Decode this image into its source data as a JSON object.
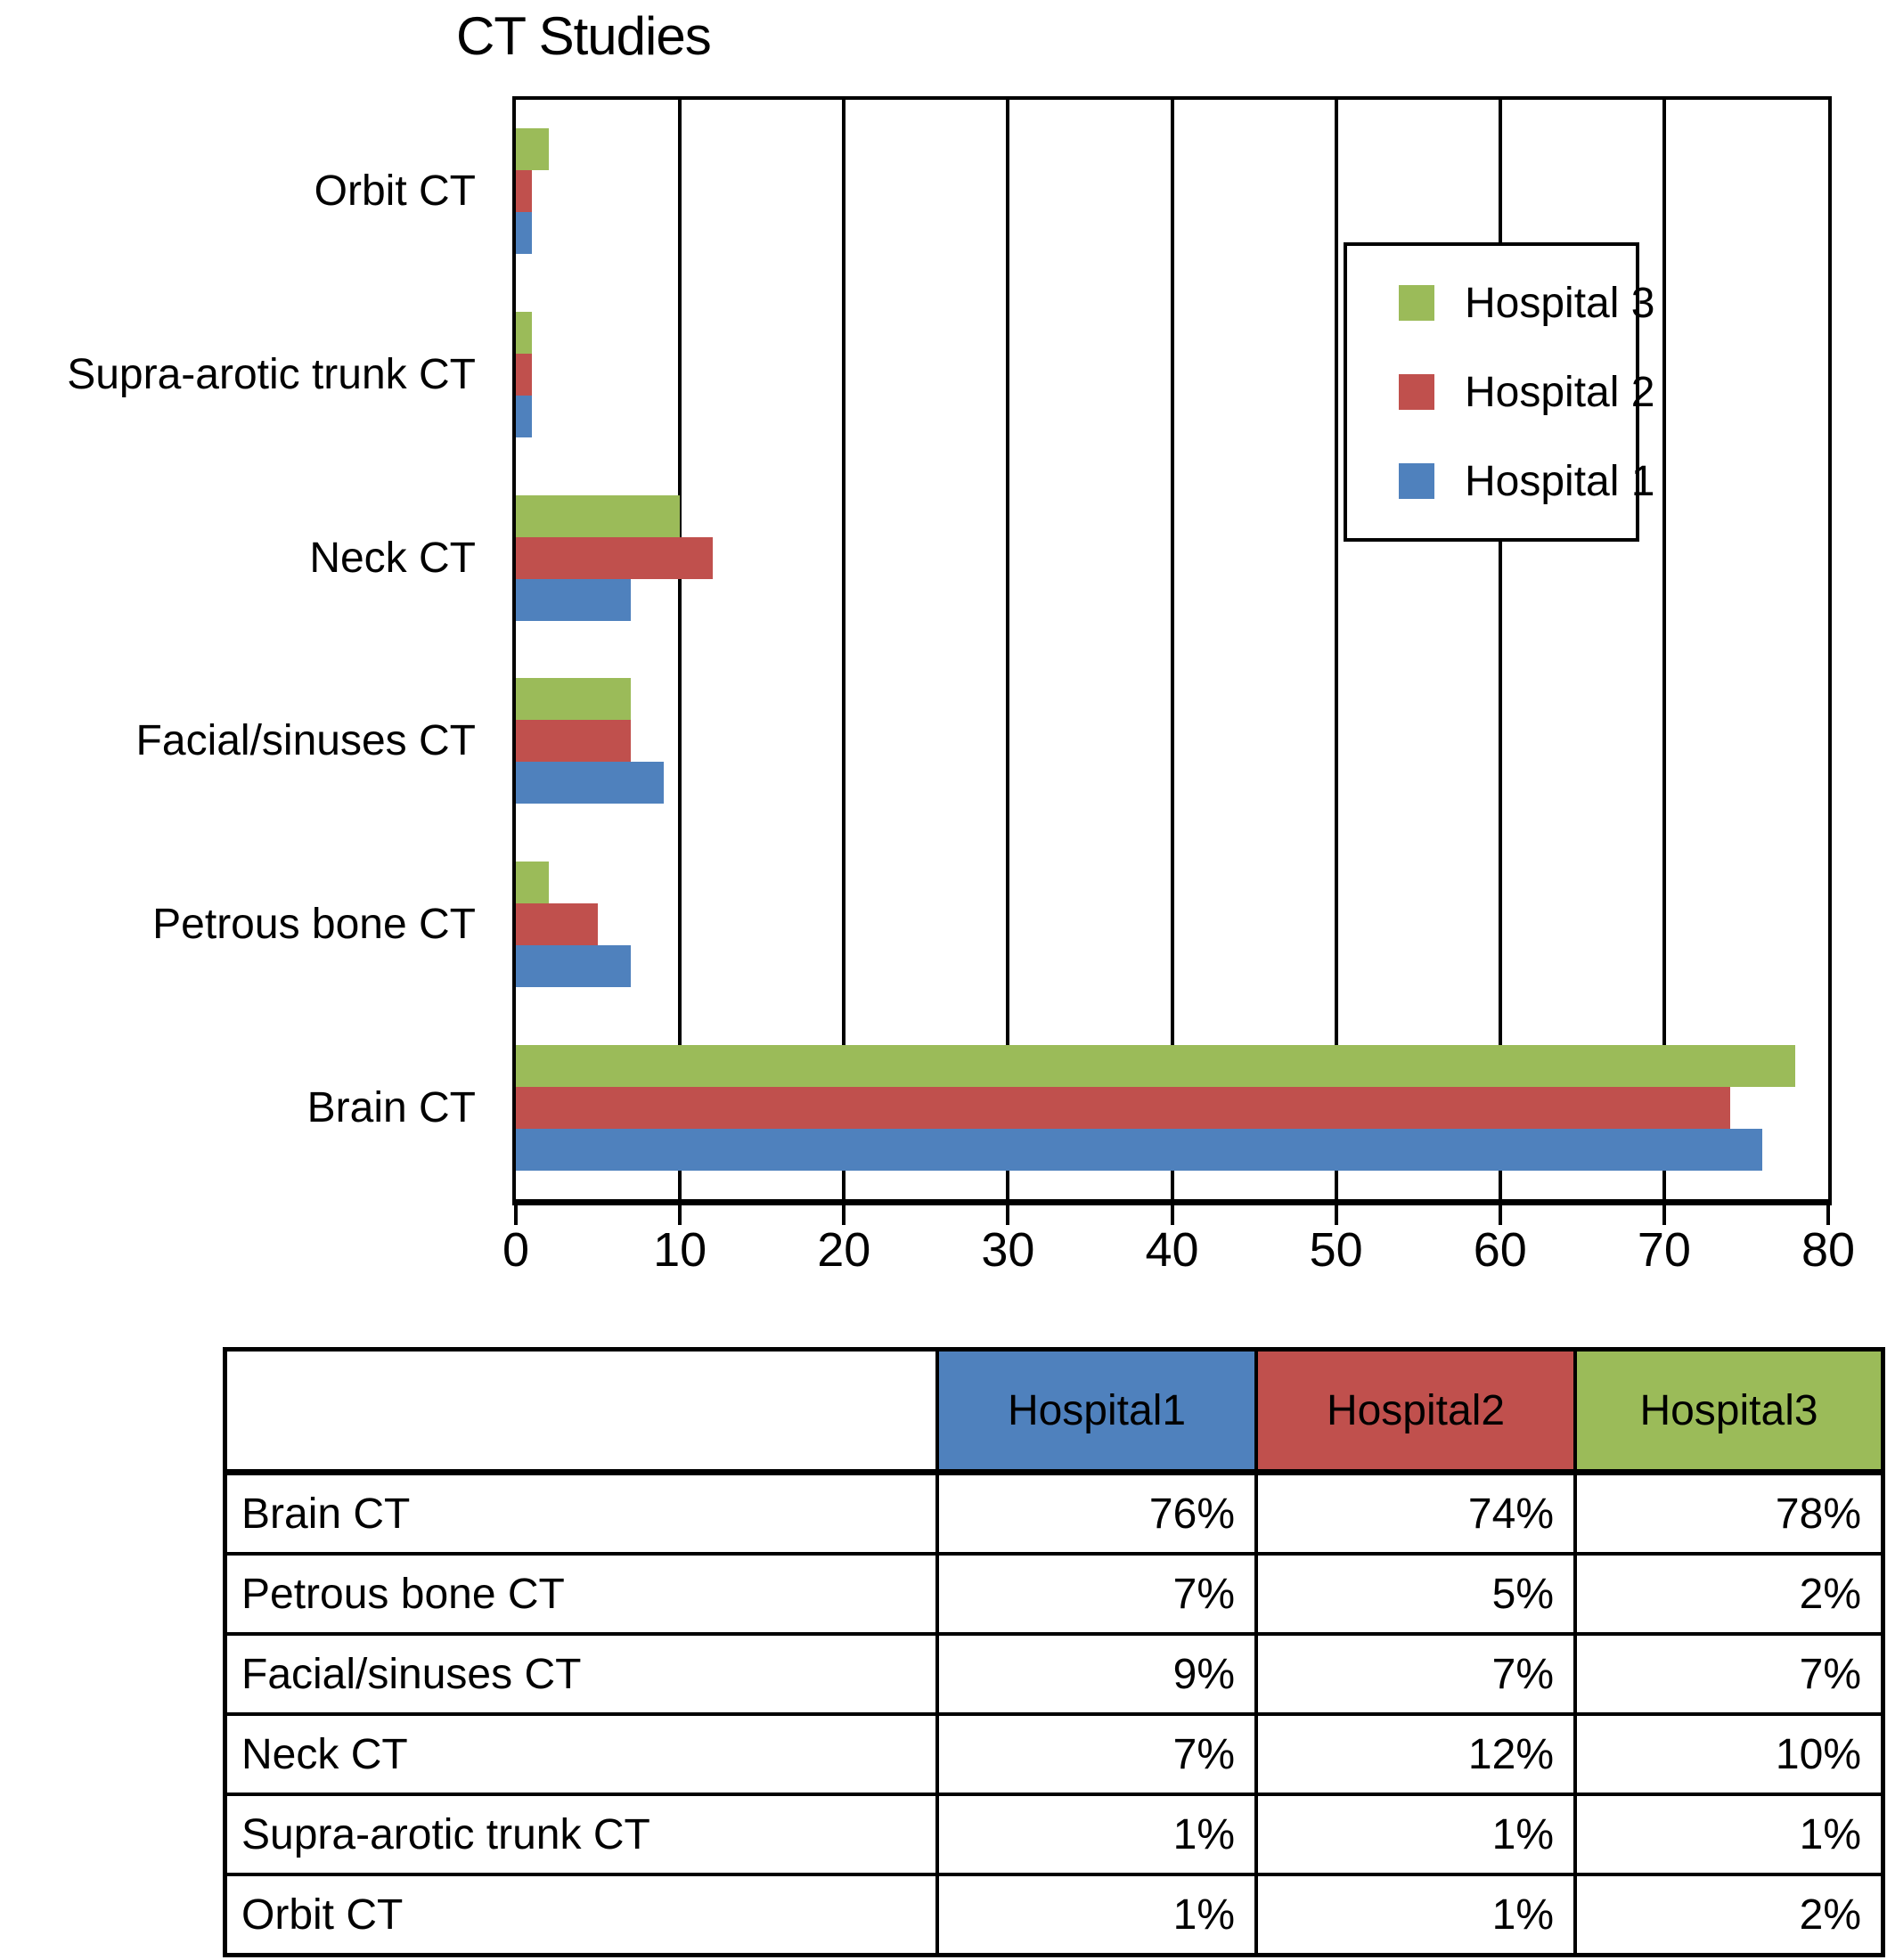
{
  "chart_data": {
    "type": "bar",
    "orientation": "horizontal",
    "title": "CT Studies",
    "xlabel": "",
    "ylabel": "",
    "xlim": [
      0,
      80
    ],
    "xticks": [
      0,
      10,
      20,
      30,
      40,
      50,
      60,
      70,
      80
    ],
    "grid": "vertical-gridlines-every-10",
    "categories_top_to_bottom": [
      "Orbit CT",
      "Supra-arotic trunk CT",
      "Neck CT",
      "Facial/sinuses CT",
      "Petrous bone CT",
      "Brain CT"
    ],
    "series": [
      {
        "name": "Hospital 3",
        "color_key": "hospital3",
        "values": [
          2,
          1,
          10,
          7,
          2,
          78
        ]
      },
      {
        "name": "Hospital 2",
        "color_key": "hospital2",
        "values": [
          1,
          1,
          12,
          7,
          5,
          74
        ]
      },
      {
        "name": "Hospital 1",
        "color_key": "hospital1",
        "values": [
          1,
          1,
          7,
          9,
          7,
          76
        ]
      }
    ],
    "legend": {
      "position": "inside-upper-right",
      "items": [
        {
          "label": "Hospital 3",
          "color_key": "hospital3"
        },
        {
          "label": "Hospital 2",
          "color_key": "hospital2"
        },
        {
          "label": "Hospital 1",
          "color_key": "hospital1"
        }
      ]
    }
  },
  "table": {
    "corner_label": "",
    "columns": [
      {
        "label": "Hospital1",
        "color_key": "hospital1"
      },
      {
        "label": "Hospital2",
        "color_key": "hospital2"
      },
      {
        "label": "Hospital3",
        "color_key": "hospital3"
      }
    ],
    "rows": [
      {
        "label": "Brain CT",
        "values": [
          "76%",
          "74%",
          "78%"
        ]
      },
      {
        "label": "Petrous bone CT",
        "values": [
          "7%",
          "5%",
          "2%"
        ]
      },
      {
        "label": "Facial/sinuses CT",
        "values": [
          "9%",
          "7%",
          "7%"
        ]
      },
      {
        "label": "Neck CT",
        "values": [
          "7%",
          "12%",
          "10%"
        ]
      },
      {
        "label": "Supra-arotic trunk CT",
        "values": [
          "1%",
          "1%",
          "1%"
        ]
      },
      {
        "label": "Orbit CT",
        "values": [
          "1%",
          "1%",
          "2%"
        ]
      }
    ]
  },
  "colors": {
    "hospital1": "#4F81BD",
    "hospital2": "#C0504D",
    "hospital3": "#9BBB59",
    "axis_and_border": "#000000",
    "background": "#FFFFFF"
  }
}
